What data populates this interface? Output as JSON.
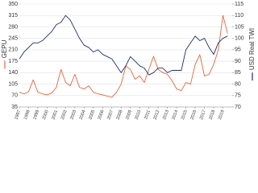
{
  "chart_data": {
    "type": "line",
    "x": [
      1997,
      1997.5,
      1998,
      1998.5,
      1999,
      1999.5,
      2000,
      2000.5,
      2001,
      2001.5,
      2002,
      2002.5,
      2003,
      2003.5,
      2004,
      2004.5,
      2005,
      2005.5,
      2006,
      2006.5,
      2007,
      2007.5,
      2008,
      2008.5,
      2009,
      2009.5,
      2010,
      2010.5,
      2011,
      2011.5,
      2012,
      2012.5,
      2013,
      2013.5,
      2014,
      2014.5,
      2015,
      2015.5,
      2016,
      2016.5,
      2017,
      2017.5,
      2018,
      2018.5,
      2019,
      2019.5
    ],
    "series": [
      {
        "name": "GEPU",
        "color": "#e8643c",
        "axis": "y",
        "values": [
          80,
          75,
          82,
          118,
          80,
          75,
          72,
          78,
          95,
          150,
          110,
          100,
          135,
          95,
          90,
          100,
          80,
          75,
          72,
          68,
          65,
          80,
          105,
          160,
          150,
          120,
          130,
          110,
          150,
          190,
          150,
          140,
          135,
          115,
          90,
          85,
          110,
          105,
          165,
          195,
          130,
          135,
          165,
          210,
          315,
          260
        ]
      },
      {
        "name": "USD Real TWI",
        "color": "#1f2d6e",
        "axis": "y2",
        "values": [
          91,
          94,
          96,
          98,
          98,
          99,
          101,
          103,
          106,
          107,
          110,
          108,
          104,
          100,
          97,
          96,
          94,
          95,
          93,
          92,
          91,
          88,
          85,
          88,
          92,
          90,
          88,
          87,
          84,
          85,
          87,
          87,
          85,
          86,
          86,
          86,
          95,
          98,
          101,
          99,
          100,
          96,
          93,
          98,
          100,
          101
        ]
      }
    ],
    "xlim": [
      1997,
      2020
    ],
    "xticks": [
      1997,
      1998,
      1999,
      2000,
      2001,
      2002,
      2003,
      2004,
      2005,
      2006,
      2007,
      2008,
      2009,
      2010,
      2011,
      2012,
      2013,
      2014,
      2015,
      2016,
      2017,
      2018,
      2019
    ],
    "ylim": [
      35,
      350
    ],
    "yticks": [
      35,
      70,
      105,
      140,
      175,
      210,
      245,
      280,
      315,
      350
    ],
    "y2lim": [
      70,
      115
    ],
    "y2ticks": [
      70,
      75,
      80,
      85,
      90,
      95,
      100,
      105,
      110,
      115
    ],
    "grid": true
  }
}
